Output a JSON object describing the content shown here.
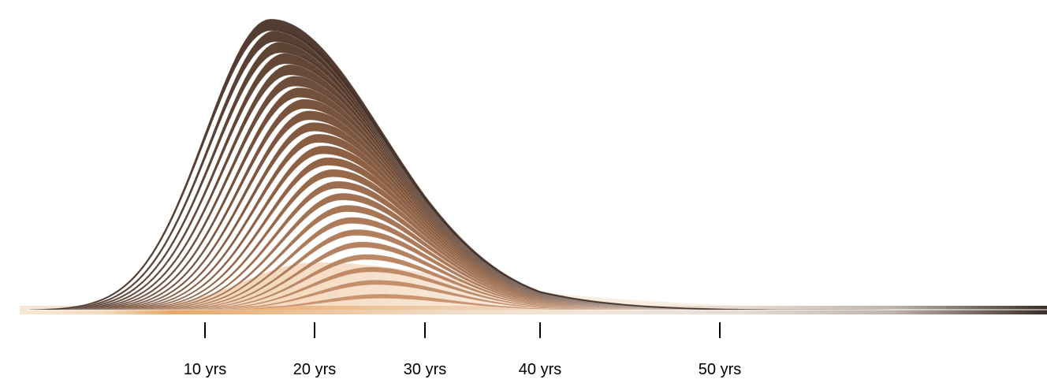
{
  "chart_data": {
    "type": "area",
    "title": "",
    "xlabel": "",
    "ylabel": "",
    "x_axis": {
      "unit": "yrs",
      "range": [
        -6,
        85
      ],
      "ticks": [
        {
          "value": 10,
          "label": "10 yrs"
        },
        {
          "value": 20,
          "label": "20 yrs"
        },
        {
          "value": 30,
          "label": "30 yrs"
        },
        {
          "value": 40,
          "label": "40 yrs"
        },
        {
          "value": 50,
          "label": "50 yrs"
        }
      ]
    },
    "grid": false,
    "legend": "none",
    "y_axis_visible": false,
    "layer_count": 24,
    "peak_x": 20,
    "colors": {
      "layer_dark": "#4a3328",
      "layer_mid": "#8a5a3c",
      "layer_light": "#c8906a",
      "base_orange": "#e0954c",
      "base_light": "#f6e6d2",
      "base_end": "#3a302c"
    }
  }
}
